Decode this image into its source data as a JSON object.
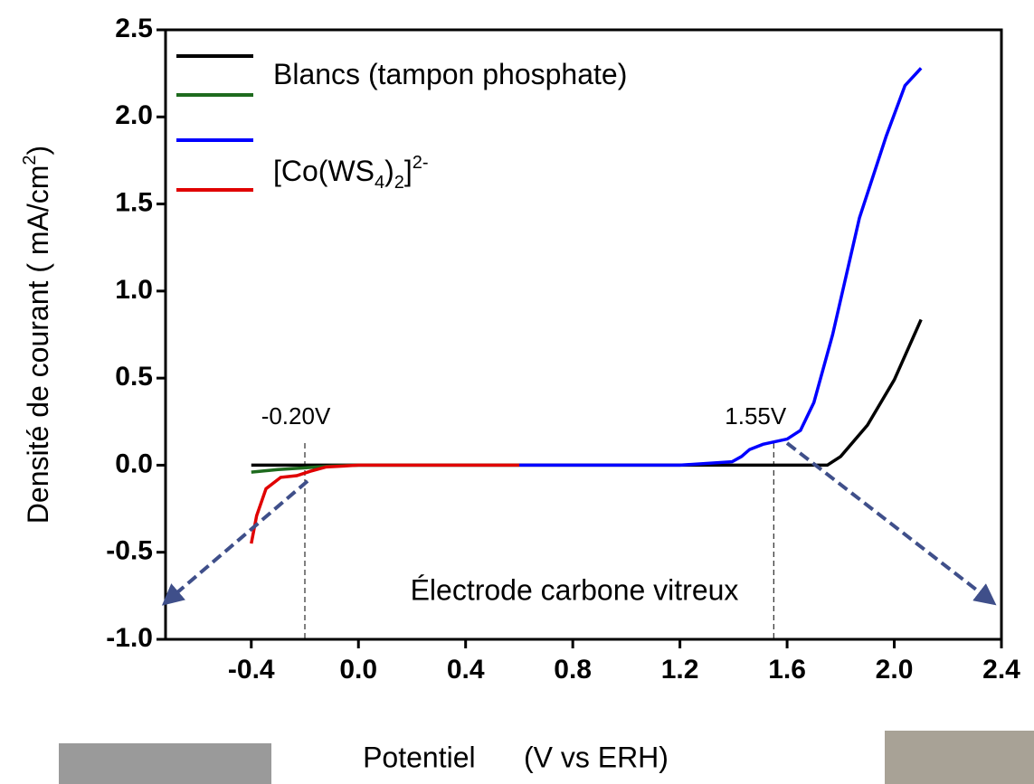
{
  "chart_data": {
    "type": "line",
    "ylabel": [
      "Densité de courant ( mA/cm",
      "2",
      ")"
    ],
    "xlabel": "Potentiel      (V vs ERH)",
    "legend_labels": [
      [
        "Blancs (tampon phosphate)"
      ],
      [
        "[Co(WS",
        "4",
        ")",
        "2",
        "]",
        "2-"
      ]
    ],
    "xlim": [
      -0.72,
      2.4
    ],
    "ylim": [
      -1.0,
      2.5
    ],
    "xticks": [
      -0.4,
      {
        "value": 0,
        "label": "0.0"
      },
      0.4,
      0.8,
      1.2,
      1.6,
      {
        "value": 2,
        "label": "2.0"
      },
      2.4
    ],
    "yticks": [
      2.5,
      {
        "value": 2,
        "label": "2.0"
      },
      1.5,
      {
        "value": 1,
        "label": "1.0"
      },
      0.5,
      {
        "value": 0,
        "label": "0.0"
      },
      -0.5,
      {
        "value": -1,
        "label": "-1.0"
      }
    ],
    "series": [
      {
        "color": "#000000",
        "x": [
          -0.4,
          0.0,
          1.0,
          1.75,
          1.8,
          1.9,
          2.0,
          2.1
        ],
        "y": [
          0.0,
          0.0,
          0.0,
          0.0,
          0.05,
          0.23,
          0.49,
          0.836
        ]
      },
      {
        "color": "#1e6b1e",
        "x": [
          -0.4,
          -0.3,
          -0.2,
          -0.1,
          0.0,
          0.6
        ],
        "y": [
          -0.04,
          -0.025,
          -0.015,
          -0.005,
          0.0,
          0.0
        ]
      },
      {
        "color": "#0000ff",
        "x": [
          0.6,
          1.2,
          1.395,
          1.43,
          1.46,
          1.51,
          1.6,
          1.65,
          1.7,
          1.77,
          1.87,
          1.97,
          2.04,
          2.1
        ],
        "y": [
          0.0,
          0.0,
          0.02,
          0.05,
          0.09,
          0.12,
          0.15,
          0.2,
          0.36,
          0.75,
          1.42,
          1.89,
          2.18,
          2.28
        ]
      },
      {
        "color": "#e00000",
        "x": [
          -0.4,
          -0.38,
          -0.345,
          -0.29,
          -0.23,
          -0.18,
          -0.12,
          0.0,
          0.6
        ],
        "y": [
          -0.45,
          -0.29,
          -0.135,
          -0.07,
          -0.06,
          -0.035,
          -0.01,
          0.0,
          0.0
        ]
      }
    ],
    "annotations": [
      {
        "text": "-0.20V",
        "x": -0.2
      },
      {
        "text": "1.55V",
        "x": 1.55
      },
      {
        "text": "Électrode carbone vitreux"
      }
    ]
  }
}
